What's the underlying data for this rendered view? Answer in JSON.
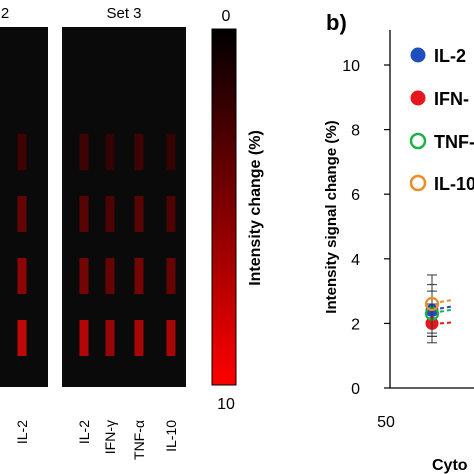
{
  "chart_data": [
    {
      "type": "heatmap",
      "panel": "a",
      "colorbar": {
        "label": "Intensity change (%)",
        "min_label": "0",
        "max_label": "10",
        "range": [
          0,
          10
        ],
        "color_low": "#000000",
        "color_high": "#ff0000"
      },
      "sets": [
        {
          "title": "2",
          "columns": [
            {
              "label": "",
              "values": [
                1.5,
                2.5,
                3.5,
                4.5
              ]
            },
            {
              "label": "IL-2",
              "values": [
                2.5,
                4.0,
                5.5,
                7.5
              ]
            }
          ]
        },
        {
          "title": "Set 3",
          "columns": [
            {
              "label": "IL-2",
              "values": [
                2.5,
                3.5,
                4.5,
                7.0
              ]
            },
            {
              "label": "IFN-γ",
              "values": [
                2.0,
                3.0,
                4.0,
                6.0
              ]
            },
            {
              "label": "TNF-α",
              "values": [
                2.5,
                3.5,
                4.5,
                6.5
              ]
            },
            {
              "label": "IL-10",
              "values": [
                2.0,
                3.0,
                4.0,
                6.5
              ]
            }
          ]
        }
      ]
    },
    {
      "type": "scatter",
      "panel_label": "b)",
      "ylabel": "Intensity signal change (%)",
      "xlabel": "Cyto",
      "ylim": [
        0,
        12
      ],
      "yticks": [
        0,
        2,
        4,
        6,
        8,
        10
      ],
      "xticks": [
        50
      ],
      "legend_placement": "top-left",
      "series": [
        {
          "name": "IL-2",
          "color": "#1f4fbf",
          "marker": "filled",
          "points": [
            {
              "x": 75,
              "y": 2.4,
              "err": 0.8
            }
          ]
        },
        {
          "name": "IFN-",
          "color": "#e8151b",
          "marker": "filled",
          "points": [
            {
              "x": 75,
              "y": 2.0,
              "err": 0.6
            }
          ]
        },
        {
          "name": "TNF-",
          "color": "#1db04a",
          "marker": "open",
          "points": [
            {
              "x": 75,
              "y": 2.3,
              "err": 0.7
            }
          ]
        },
        {
          "name": "IL-10",
          "color": "#f08a24",
          "marker": "open",
          "points": [
            {
              "x": 75,
              "y": 2.6,
              "err": 0.9
            }
          ]
        }
      ]
    }
  ]
}
